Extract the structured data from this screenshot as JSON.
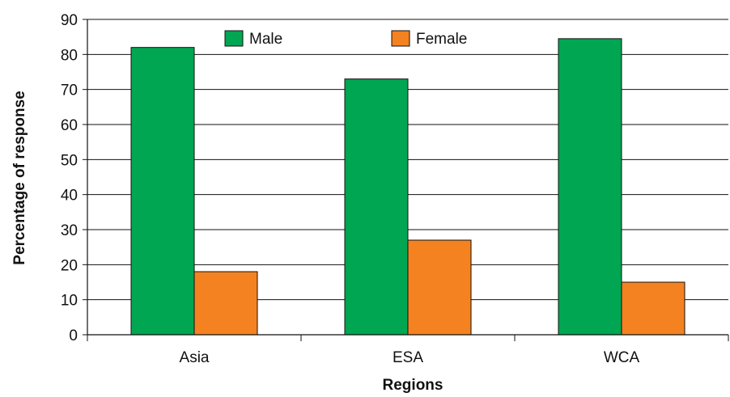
{
  "chart_data": {
    "type": "bar",
    "categories": [
      "Asia",
      "ESA",
      "WCA"
    ],
    "series": [
      {
        "name": "Male",
        "values": [
          82,
          73,
          84.5
        ],
        "color": "#00a651"
      },
      {
        "name": "Female",
        "values": [
          18,
          27,
          15
        ],
        "color": "#f58220"
      }
    ],
    "title": "",
    "xlabel": "Regions",
    "ylabel": "Percentage of response",
    "ylim": [
      0,
      90
    ],
    "yticks": [
      0,
      10,
      20,
      30,
      40,
      50,
      60,
      70,
      80,
      90
    ],
    "grid": true,
    "legend_position": "top-center"
  }
}
